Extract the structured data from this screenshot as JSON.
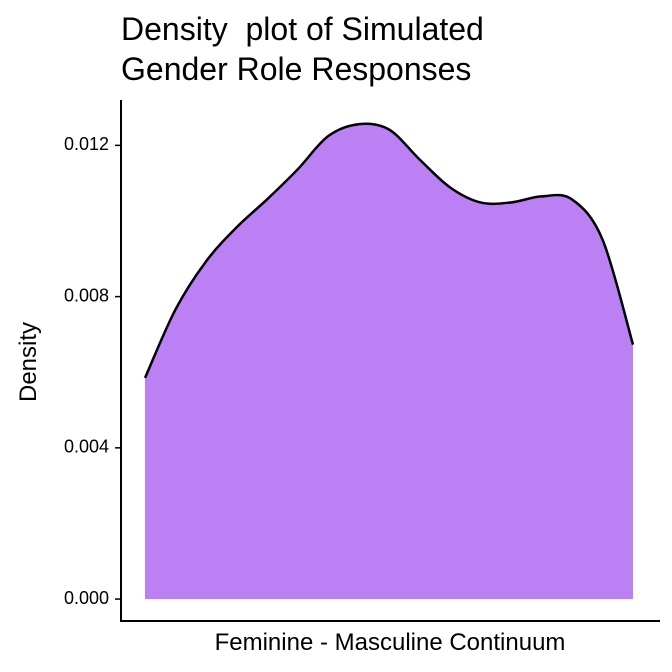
{
  "chart_data": {
    "type": "density",
    "title": [
      "Density  plot of Simulated",
      "Gender Role Responses"
    ],
    "x_label": "Feminine - Masculine Continuum",
    "y_label": "Density",
    "values": [
      0.00585,
      0.00766,
      0.00893,
      0.00983,
      0.01057,
      0.01136,
      0.01224,
      0.01256,
      0.01242,
      0.01163,
      0.01089,
      0.01049,
      0.01049,
      0.01065,
      0.01057,
      0.00951,
      0.00673
    ],
    "color": "#bb80f4",
    "line_color": "#000000",
    "ylim": [
      -0.00058,
      0.0132
    ],
    "yticks": [
      {
        "value": 0,
        "label": "0.000"
      },
      {
        "value": 0.004,
        "label": "0.004"
      },
      {
        "value": 0.008,
        "label": "0.008"
      },
      {
        "value": 0.012,
        "label": "0.012"
      }
    ],
    "grid": false
  }
}
